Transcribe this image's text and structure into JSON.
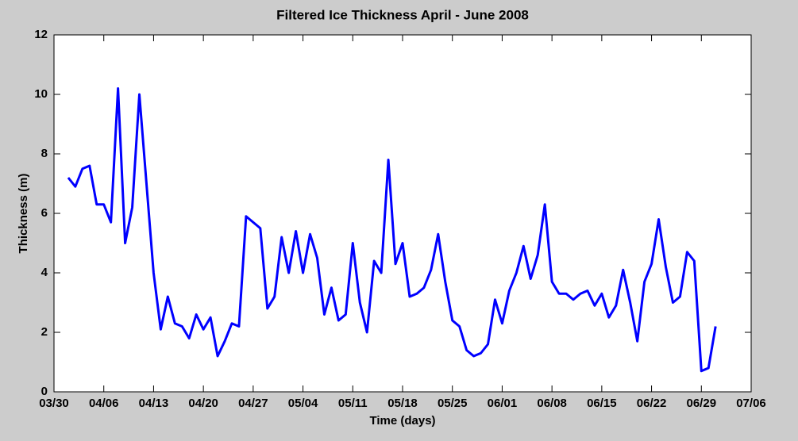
{
  "chart_data": {
    "type": "line",
    "title": "Filtered Ice Thickness April - June 2008",
    "x_label": "Time (days)",
    "y_label": "Thickness (m)",
    "x": [
      "04/01",
      "04/02",
      "04/03",
      "04/04",
      "04/05",
      "04/06",
      "04/07",
      "04/08",
      "04/09",
      "04/10",
      "04/11",
      "04/12",
      "04/13",
      "04/14",
      "04/15",
      "04/16",
      "04/17",
      "04/18",
      "04/19",
      "04/20",
      "04/21",
      "04/22",
      "04/23",
      "04/24",
      "04/25",
      "04/26",
      "04/27",
      "04/28",
      "04/29",
      "04/30",
      "05/01",
      "05/02",
      "05/03",
      "05/04",
      "05/05",
      "05/06",
      "05/07",
      "05/08",
      "05/09",
      "05/10",
      "05/11",
      "05/12",
      "05/13",
      "05/14",
      "05/15",
      "05/16",
      "05/17",
      "05/18",
      "05/19",
      "05/20",
      "05/21",
      "05/22",
      "05/23",
      "05/24",
      "05/25",
      "05/26",
      "05/27",
      "05/28",
      "05/29",
      "05/30",
      "05/31",
      "06/01",
      "06/02",
      "06/03",
      "06/04",
      "06/05",
      "06/06",
      "06/07",
      "06/08",
      "06/09",
      "06/10",
      "06/11",
      "06/12",
      "06/13",
      "06/14",
      "06/15",
      "06/16",
      "06/17",
      "06/18",
      "06/19",
      "06/20",
      "06/21",
      "06/22",
      "06/23",
      "06/24",
      "06/25",
      "06/26",
      "06/27",
      "06/28",
      "06/29",
      "06/30",
      "07/01"
    ],
    "series": [
      {
        "name": "Thickness",
        "color": "#0000ff",
        "values": [
          7.2,
          6.9,
          7.5,
          7.6,
          6.3,
          6.3,
          5.7,
          10.2,
          5.0,
          6.2,
          10.0,
          7.0,
          4.0,
          2.1,
          3.2,
          2.3,
          2.2,
          1.8,
          2.6,
          2.1,
          2.5,
          1.2,
          1.7,
          2.3,
          2.2,
          5.9,
          5.7,
          5.5,
          2.8,
          3.2,
          5.2,
          4.0,
          5.4,
          4.0,
          5.3,
          4.5,
          2.6,
          3.5,
          2.4,
          2.6,
          5.0,
          3.0,
          2.0,
          4.4,
          4.0,
          7.8,
          4.3,
          5.0,
          3.2,
          3.3,
          3.5,
          4.1,
          5.3,
          3.7,
          2.4,
          2.2,
          1.4,
          1.2,
          1.3,
          1.6,
          3.1,
          2.3,
          3.4,
          4.0,
          4.9,
          3.8,
          4.6,
          6.3,
          3.7,
          3.3,
          3.3,
          3.1,
          3.3,
          3.4,
          2.9,
          3.3,
          2.5,
          2.9,
          4.1,
          3.0,
          1.7,
          3.7,
          4.3,
          5.8,
          4.2,
          3.0,
          3.2,
          4.7,
          4.4,
          0.7,
          0.8,
          2.2
        ]
      }
    ],
    "xlim": [
      "03/30",
      "07/06"
    ],
    "xticks": [
      "03/30",
      "04/06",
      "04/13",
      "04/20",
      "04/27",
      "05/04",
      "05/11",
      "05/18",
      "05/25",
      "06/01",
      "06/08",
      "06/15",
      "06/22",
      "06/29",
      "07/06"
    ],
    "ylim": [
      0,
      12
    ],
    "yticks": [
      0,
      2,
      4,
      6,
      8,
      10,
      12
    ],
    "grid": false
  }
}
